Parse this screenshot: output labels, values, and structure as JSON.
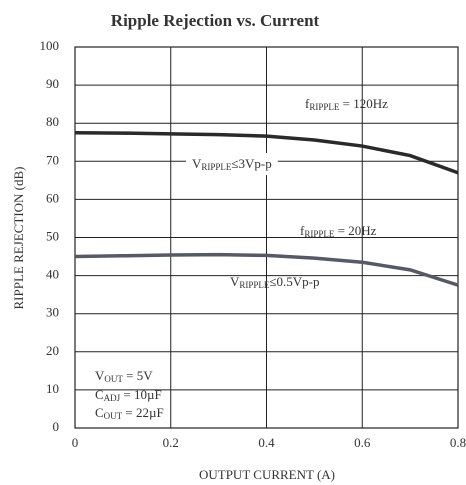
{
  "chart_data": {
    "type": "line",
    "title": "Ripple Rejection vs. Current",
    "xlabel": "OUTPUT CURRENT (A)",
    "ylabel": "RIPPLE REJECTION (dB)",
    "x": [
      0,
      0.1,
      0.2,
      0.3,
      0.4,
      0.5,
      0.6,
      0.7,
      0.8
    ],
    "series": [
      {
        "name": "120Hz",
        "color": "#2a2a2a",
        "values": [
          77.5,
          77.4,
          77.2,
          77.0,
          76.6,
          75.6,
          74.0,
          71.5,
          67
        ]
      },
      {
        "name": "20Hz",
        "color": "#555a66",
        "values": [
          45,
          45.2,
          45.4,
          45.5,
          45.3,
          44.6,
          43.5,
          41.5,
          37.5
        ]
      }
    ],
    "xlim": [
      0,
      0.8
    ],
    "xticks": [
      0,
      0.2,
      0.4,
      0.6,
      0.8
    ],
    "ylim": [
      0,
      100
    ],
    "yticks": [
      0,
      10,
      20,
      30,
      40,
      50,
      60,
      70,
      80,
      90,
      100
    ],
    "grid": true,
    "annotations": [
      {
        "main": "f",
        "sub": "RIPPLE",
        "rest": " = 120Hz"
      },
      {
        "main": "V",
        "sub": "RIPPLE",
        "rest": "≤3Vp-p"
      },
      {
        "main": "f",
        "sub": "RIPPLE",
        "rest": " = 20Hz"
      },
      {
        "main": "V",
        "sub": "RIPPLE",
        "rest": "≤0.5Vp-p"
      },
      {
        "main": "V",
        "sub": "OUT",
        "rest": " = 5V"
      },
      {
        "main": "C",
        "sub": "ADJ",
        "rest": " = 10µF"
      },
      {
        "main": "C",
        "sub": "OUT",
        "rest": " = 22µF"
      }
    ]
  }
}
